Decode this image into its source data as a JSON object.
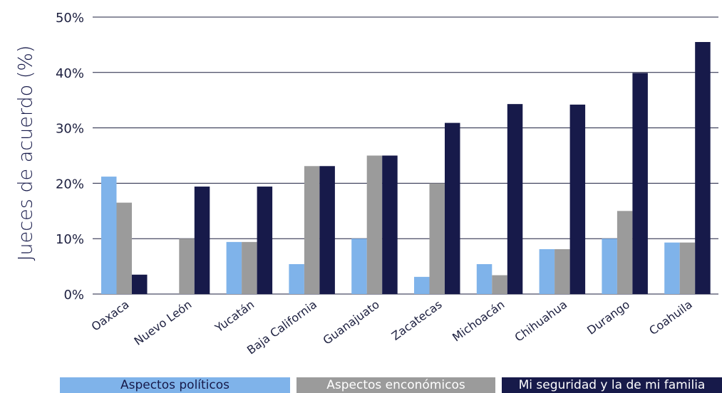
{
  "chart_data": {
    "type": "bar",
    "title": "",
    "ylabel": "Jueces de acuerdo (%)",
    "xlabel": "",
    "ylim": [
      0,
      50
    ],
    "yticks": [
      "0%",
      "10%",
      "20%",
      "30%",
      "40%",
      "50%"
    ],
    "categories": [
      "Oaxaca",
      "Nuevo León",
      "Yucatán",
      "Baja California",
      "Guanajuato",
      "Zacatecas",
      "Michoacán",
      "Chihuahua",
      "Durango",
      "Coahuila"
    ],
    "series": [
      {
        "name": "Aspectos políticos",
        "color": "#7fb3ea",
        "values": [
          21.2,
          0,
          9.4,
          5.4,
          10,
          3.1,
          5.4,
          8.1,
          10,
          9.3
        ]
      },
      {
        "name": "Aspectos enconómicos",
        "color": "#9b9b9b",
        "values": [
          16.5,
          10,
          9.4,
          23.1,
          25,
          20,
          3.4,
          8.1,
          15,
          9.3
        ]
      },
      {
        "name": "Mi seguridad y la de mi familia",
        "color": "#171a4a",
        "values": [
          3.5,
          19.4,
          19.4,
          23.1,
          25,
          30.9,
          34.3,
          34.2,
          39.9,
          45.5
        ]
      }
    ],
    "grid": true,
    "legend": "bottom"
  }
}
